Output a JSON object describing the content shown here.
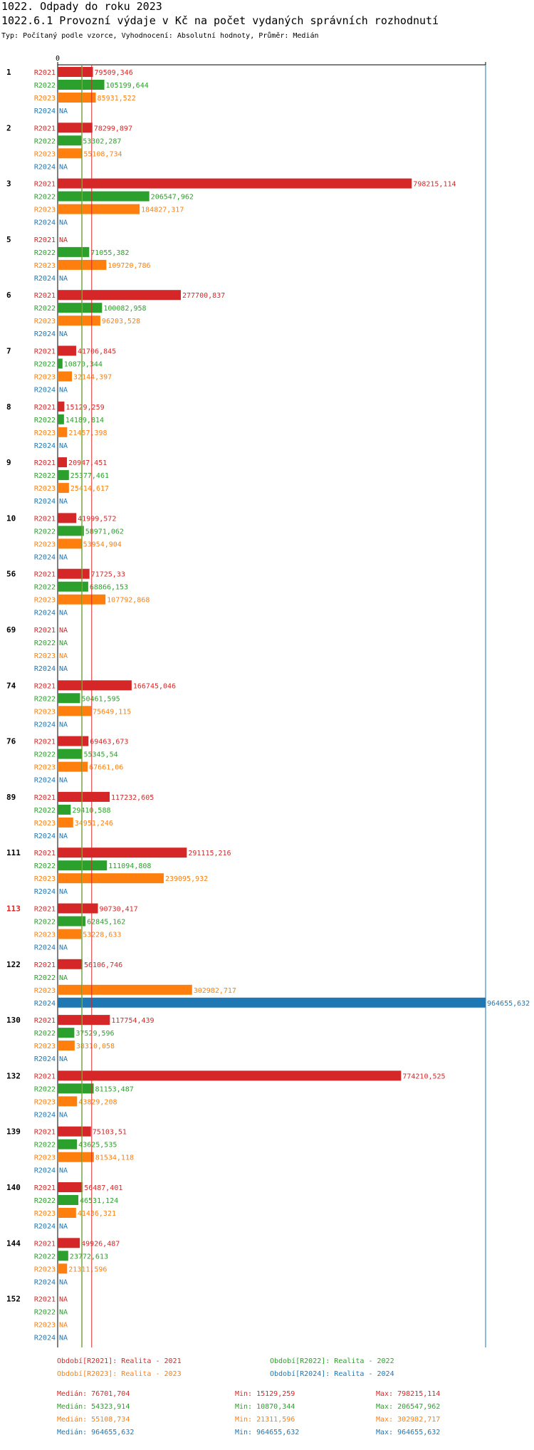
{
  "header": {
    "title": "1022. Odpady do roku 2023",
    "subtitle": "1022.6.1 Provozní výdaje v Kč na počet vydaných správních rozhodnutí",
    "info": "Typ: Počítaný podle vzorce, Vyhodnocení: Absolutní hodnoty, Průměr: Medián"
  },
  "colors": {
    "R2021": "#d62728",
    "R2022": "#2ca02c",
    "R2023": "#ff7f0e",
    "R2024": "#1f77b4",
    "highlight_group": "#d62728"
  },
  "chart_data": {
    "type": "bar",
    "orientation": "horizontal",
    "x_tick": "0",
    "xlim": [
      0,
      964655.632
    ],
    "series_keys": [
      "R2021",
      "R2022",
      "R2023",
      "R2024"
    ],
    "groups": [
      {
        "name": "1",
        "labels": [
          "79509,346",
          "105199,644",
          "85931,522",
          "NA"
        ],
        "values": [
          79509.346,
          105199.644,
          85931.522,
          null
        ]
      },
      {
        "name": "2",
        "labels": [
          "78299,897",
          "53302,287",
          "55108,734",
          "NA"
        ],
        "values": [
          78299.897,
          53302.287,
          55108.734,
          null
        ]
      },
      {
        "name": "3",
        "labels": [
          "798215,114",
          "206547,962",
          "184827,317",
          "NA"
        ],
        "values": [
          798215.114,
          206547.962,
          184827.317,
          null
        ]
      },
      {
        "name": "5",
        "labels": [
          "NA",
          "71055,382",
          "109720,786",
          "NA"
        ],
        "values": [
          null,
          71055.382,
          109720.786,
          null
        ]
      },
      {
        "name": "6",
        "labels": [
          "277700,837",
          "100082,958",
          "96203,528",
          "NA"
        ],
        "values": [
          277700.837,
          100082.958,
          96203.528,
          null
        ]
      },
      {
        "name": "7",
        "labels": [
          "41706,845",
          "10870,344",
          "32144,397",
          "NA"
        ],
        "values": [
          41706.845,
          10870.344,
          32144.397,
          null
        ]
      },
      {
        "name": "8",
        "labels": [
          "15129,259",
          "14189,814",
          "21457,398",
          "NA"
        ],
        "values": [
          15129.259,
          14189.814,
          21457.398,
          null
        ]
      },
      {
        "name": "9",
        "labels": [
          "20947,451",
          "25377,461",
          "25414,617",
          "NA"
        ],
        "values": [
          20947.451,
          25377.461,
          25414.617,
          null
        ]
      },
      {
        "name": "10",
        "labels": [
          "41999,572",
          "58971,062",
          "53954,904",
          "NA"
        ],
        "values": [
          41999.572,
          58971.062,
          53954.904,
          null
        ]
      },
      {
        "name": "56",
        "labels": [
          "71725,33",
          "68866,153",
          "107792,868",
          "NA"
        ],
        "values": [
          71725.33,
          68866.153,
          107792.868,
          null
        ]
      },
      {
        "name": "69",
        "labels": [
          "NA",
          "NA",
          "NA",
          "NA"
        ],
        "values": [
          null,
          null,
          null,
          null
        ]
      },
      {
        "name": "74",
        "labels": [
          "166745,046",
          "50461,595",
          "75649,115",
          "NA"
        ],
        "values": [
          166745.046,
          50461.595,
          75649.115,
          null
        ]
      },
      {
        "name": "76",
        "labels": [
          "69463,673",
          "55345,54",
          "67661,06",
          "NA"
        ],
        "values": [
          69463.673,
          55345.54,
          67661.06,
          null
        ]
      },
      {
        "name": "89",
        "labels": [
          "117232,605",
          "29410,588",
          "34951,246",
          "NA"
        ],
        "values": [
          117232.605,
          29410.588,
          34951.246,
          null
        ]
      },
      {
        "name": "111",
        "labels": [
          "291115,216",
          "111094,808",
          "239095,932",
          "NA"
        ],
        "values": [
          291115.216,
          111094.808,
          239095.932,
          null
        ]
      },
      {
        "name": "113",
        "highlight": true,
        "labels": [
          "90730,417",
          "62845,162",
          "53228,633",
          "NA"
        ],
        "values": [
          90730.417,
          62845.162,
          53228.633,
          null
        ]
      },
      {
        "name": "122",
        "labels": [
          "56106,746",
          "NA",
          "302982,717",
          "964655,632"
        ],
        "values": [
          56106.746,
          null,
          302982.717,
          964655.632
        ]
      },
      {
        "name": "130",
        "labels": [
          "117754,439",
          "37529,596",
          "38310,058",
          "NA"
        ],
        "values": [
          117754.439,
          37529.596,
          38310.058,
          null
        ]
      },
      {
        "name": "132",
        "labels": [
          "774210,525",
          "81153,487",
          "43829,208",
          "NA"
        ],
        "values": [
          774210.525,
          81153.487,
          43829.208,
          null
        ]
      },
      {
        "name": "139",
        "labels": [
          "75103,51",
          "43625,535",
          "81534,118",
          "NA"
        ],
        "values": [
          75103.51,
          43625.535,
          81534.118,
          null
        ]
      },
      {
        "name": "140",
        "labels": [
          "56487,401",
          "46531,124",
          "41436,321",
          "NA"
        ],
        "values": [
          56487.401,
          46531.124,
          41436.321,
          null
        ]
      },
      {
        "name": "144",
        "labels": [
          "49926,487",
          "23772,613",
          "21311,596",
          "NA"
        ],
        "values": [
          49926.487,
          23772.613,
          21311.596,
          null
        ]
      },
      {
        "name": "152",
        "labels": [
          "NA",
          "NA",
          "NA",
          "NA"
        ],
        "values": [
          null,
          null,
          null,
          null
        ]
      }
    ],
    "median_lines": [
      {
        "series": "R2021",
        "value": 76701.704
      },
      {
        "series": "R2022",
        "value": 54323.914
      },
      {
        "series": "R2023",
        "value": 55108.734
      },
      {
        "series": "R2024",
        "value": 964655.632
      }
    ]
  },
  "legend": {
    "periods": [
      {
        "key": "R2021",
        "text": "Období[R2021]: Realita - 2021"
      },
      {
        "key": "R2022",
        "text": "Období[R2022]: Realita - 2022"
      },
      {
        "key": "R2023",
        "text": "Období[R2023]: Realita - 2023"
      },
      {
        "key": "R2024",
        "text": "Období[R2024]: Realita - 2024"
      }
    ],
    "stats": [
      {
        "key": "R2021",
        "median": "Medián: 76701,704",
        "min": "Min: 15129,259",
        "max": "Max: 798215,114"
      },
      {
        "key": "R2022",
        "median": "Medián: 54323,914",
        "min": "Min: 10870,344",
        "max": "Max: 206547,962"
      },
      {
        "key": "R2023",
        "median": "Medián: 55108,734",
        "min": "Min: 21311,596",
        "max": "Max: 302982,717"
      },
      {
        "key": "R2024",
        "median": "Medián: 964655,632",
        "min": "Min: 964655,632",
        "max": "Max: 964655,632"
      }
    ]
  }
}
